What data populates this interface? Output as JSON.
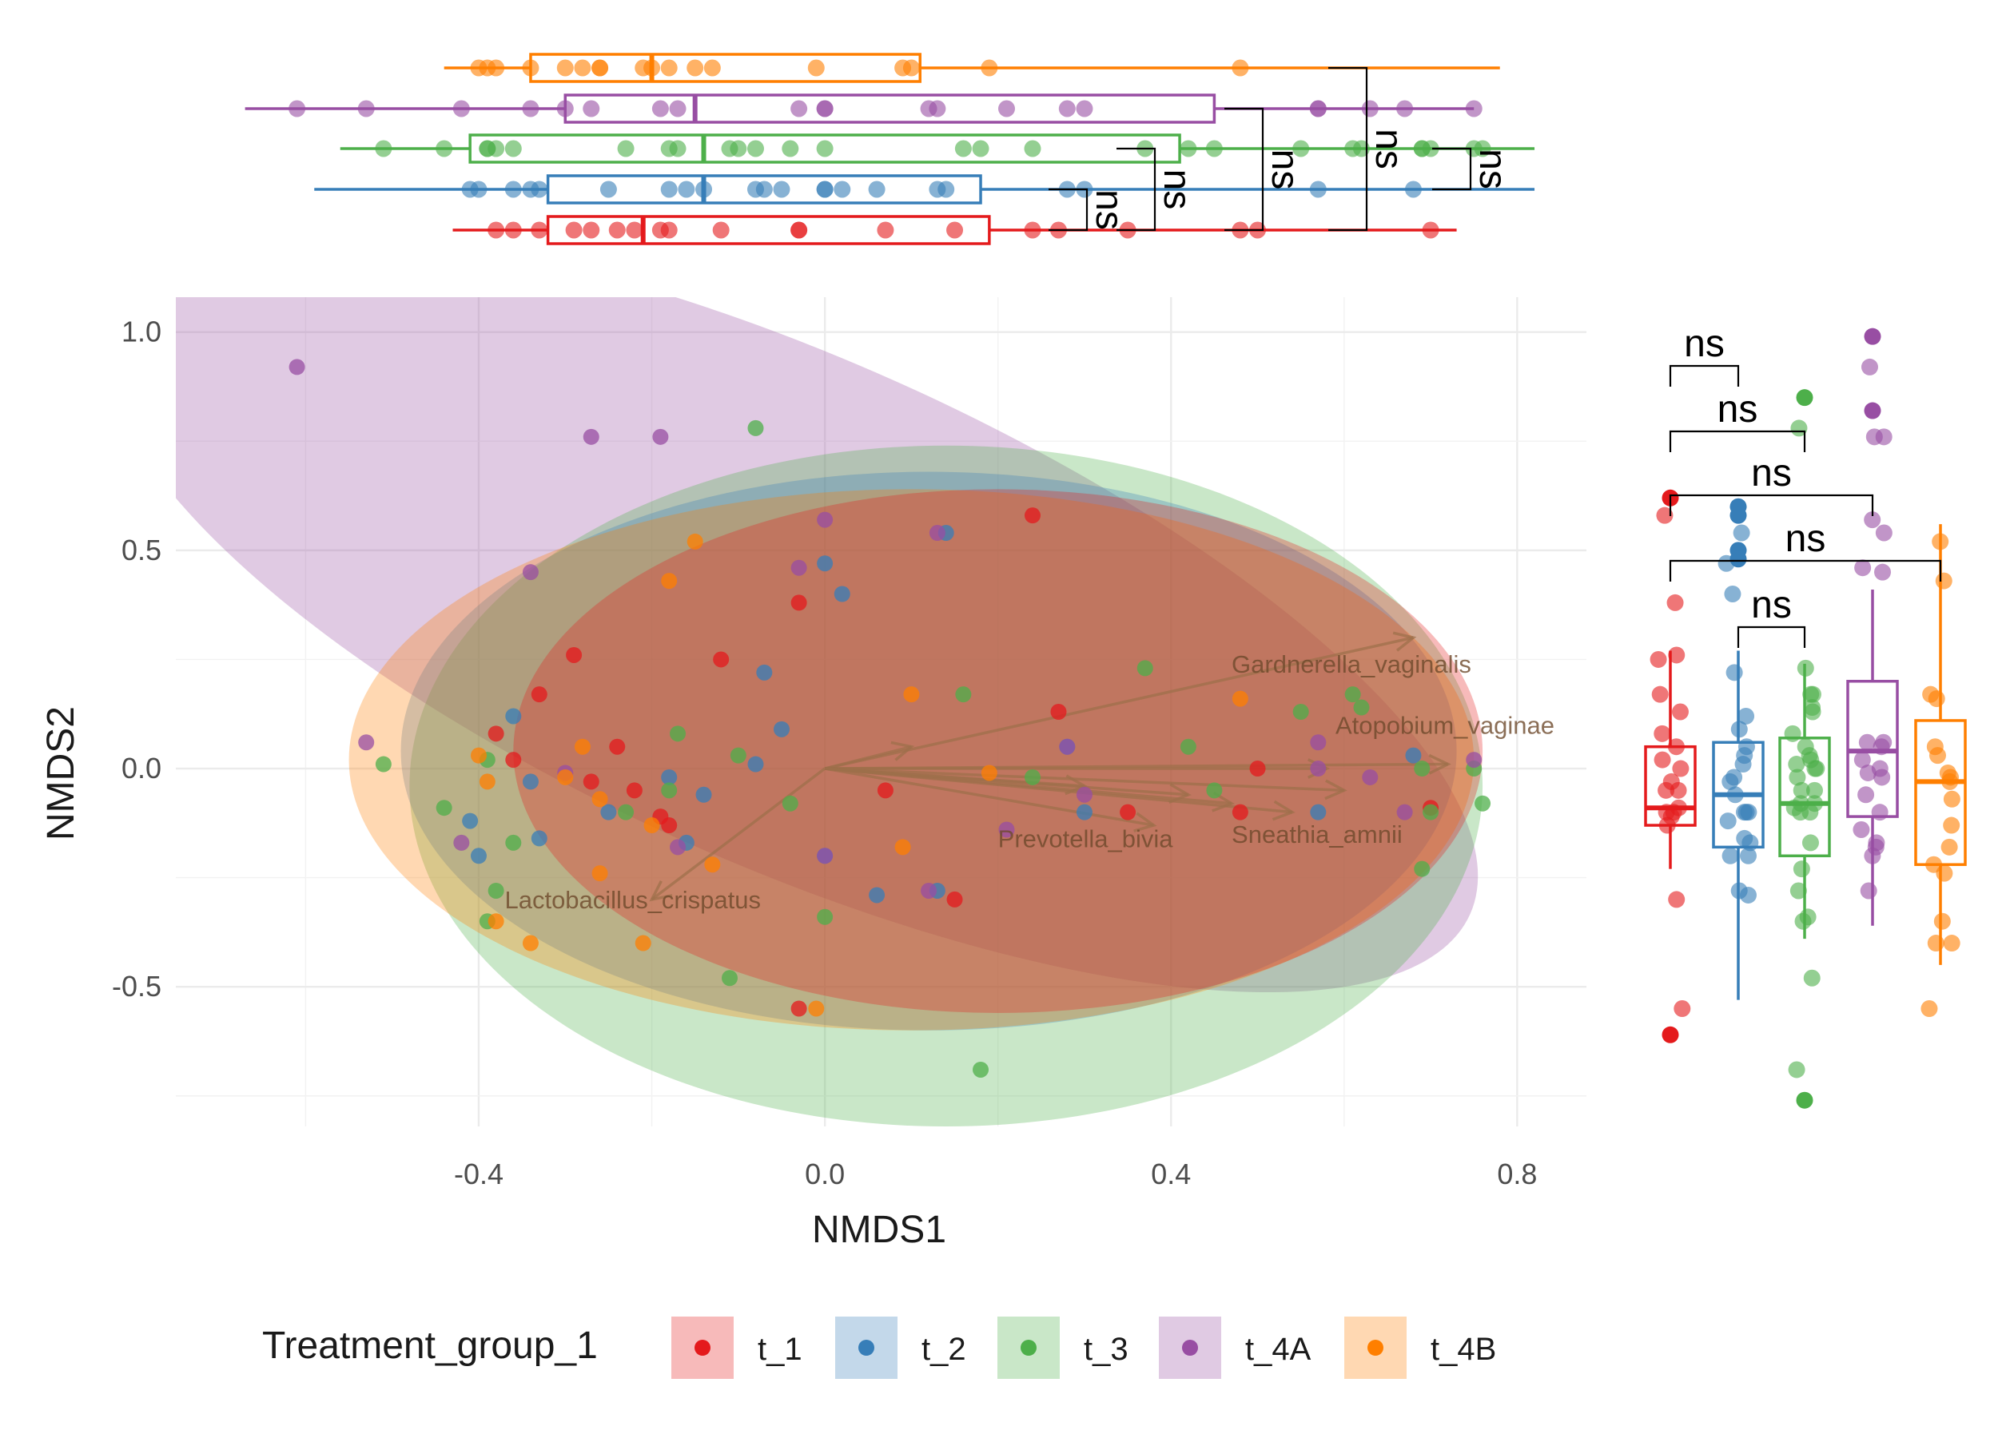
{
  "chart_data": {
    "type": "scatter",
    "subtype": "nmds-ordination-with-marginal-boxplots",
    "xlabel": "NMDS1",
    "ylabel": "NMDS2",
    "xlim": [
      -0.75,
      0.88
    ],
    "ylim": [
      -0.82,
      1.08
    ],
    "xticks": [
      -0.4,
      0.0,
      0.4,
      0.8
    ],
    "xtick_labels": [
      "-0.4",
      "0.0",
      "0.4",
      "0.8"
    ],
    "yticks": [
      -0.5,
      0.0,
      0.5,
      1.0
    ],
    "ytick_labels": [
      "-0.5",
      "0.0",
      "0.5",
      "1.0"
    ],
    "grid": true,
    "legend": {
      "title": "Treatment_group_1",
      "placement": "bottom",
      "entries": [
        "t_1",
        "t_2",
        "t_3",
        "t_4A",
        "t_4B"
      ]
    },
    "colors": {
      "t_1": "#E41A1C",
      "t_2": "#377EB8",
      "t_3": "#4DAF4A",
      "t_4A": "#984EA3",
      "t_4B": "#FF7F00"
    },
    "ellipses": [
      {
        "group": "t_4A",
        "cx": -0.04,
        "cy": 0.36,
        "rx": 0.86,
        "ry": 0.58,
        "angle_deg": -24
      },
      {
        "group": "t_3",
        "cx": 0.14,
        "cy": -0.04,
        "rx": 0.62,
        "ry": 0.78,
        "angle_deg": 0
      },
      {
        "group": "t_2",
        "cx": 0.12,
        "cy": 0.04,
        "rx": 0.61,
        "ry": 0.64,
        "angle_deg": 0
      },
      {
        "group": "t_4B",
        "cx": 0.1,
        "cy": 0.02,
        "rx": 0.65,
        "ry": 0.62,
        "angle_deg": 0
      },
      {
        "group": "t_1",
        "cx": 0.2,
        "cy": 0.04,
        "rx": 0.56,
        "ry": 0.6,
        "angle_deg": 0
      }
    ],
    "vectors": [
      {
        "label": "Gardnerella_vaginalis",
        "x": 0.68,
        "y": 0.3
      },
      {
        "label": "Atopobium_vaginae",
        "x": 0.72,
        "y": 0.01
      },
      {
        "label": "Prevotella_bivia",
        "x": 0.38,
        "y": -0.13
      },
      {
        "label": "Sneathia_amnii",
        "x": 0.54,
        "y": -0.1
      },
      {
        "label": "Lactobacillus_crispatus",
        "x": -0.2,
        "y": -0.3
      },
      {
        "label": "",
        "x": 0.1,
        "y": 0.05
      },
      {
        "label": "",
        "x": 0.58,
        "y": 0.0
      },
      {
        "label": "",
        "x": 0.3,
        "y": -0.04
      },
      {
        "label": "",
        "x": 0.47,
        "y": -0.08
      },
      {
        "label": "",
        "x": 0.6,
        "y": -0.05
      },
      {
        "label": "",
        "x": 0.42,
        "y": -0.06
      }
    ],
    "vector_label_positions": [
      {
        "label": "Gardnerella_vaginalis",
        "x": 0.47,
        "y": 0.22
      },
      {
        "label": "Atopobium_vaginae",
        "x": 0.59,
        "y": 0.08
      },
      {
        "label": "Prevotella_bivia",
        "x": 0.2,
        "y": -0.18
      },
      {
        "label": "Sneathia_amnii",
        "x": 0.47,
        "y": -0.17
      },
      {
        "label": "Lactobacillus_crispatus",
        "x": -0.37,
        "y": -0.32
      }
    ],
    "series": [
      {
        "name": "t_1",
        "points": [
          [
            -0.38,
            0.08
          ],
          [
            -0.33,
            0.17
          ],
          [
            -0.29,
            0.26
          ],
          [
            -0.24,
            0.05
          ],
          [
            -0.22,
            -0.05
          ],
          [
            -0.18,
            -0.13
          ],
          [
            -0.12,
            0.25
          ],
          [
            -0.03,
            0.38
          ],
          [
            0.24,
            0.58
          ],
          [
            0.35,
            -0.1
          ],
          [
            0.48,
            -0.1
          ],
          [
            0.7,
            -0.09
          ],
          [
            -0.36,
            0.02
          ],
          [
            -0.27,
            -0.03
          ],
          [
            -0.19,
            -0.11
          ],
          [
            0.27,
            0.13
          ],
          [
            0.07,
            -0.05
          ],
          [
            0.15,
            -0.3
          ],
          [
            -0.03,
            -0.55
          ],
          [
            0.5,
            0.0
          ]
        ]
      },
      {
        "name": "t_2",
        "points": [
          [
            -0.34,
            -0.03
          ],
          [
            -0.41,
            -0.12
          ],
          [
            -0.33,
            -0.16
          ],
          [
            -0.25,
            -0.1
          ],
          [
            -0.18,
            -0.02
          ],
          [
            -0.14,
            -0.06
          ],
          [
            -0.0,
            0.47
          ],
          [
            -0.08,
            0.01
          ],
          [
            0.02,
            0.4
          ],
          [
            -0.07,
            0.22
          ],
          [
            0.14,
            0.54
          ],
          [
            0.28,
            0.05
          ],
          [
            0.0,
            -0.2
          ],
          [
            -0.05,
            0.09
          ],
          [
            0.13,
            -0.28
          ],
          [
            0.06,
            -0.29
          ],
          [
            0.57,
            -0.1
          ],
          [
            0.68,
            0.03
          ],
          [
            -0.16,
            -0.17
          ],
          [
            0.3,
            -0.1
          ],
          [
            -0.4,
            -0.2
          ],
          [
            -0.36,
            0.12
          ]
        ]
      },
      {
        "name": "t_3",
        "points": [
          [
            -0.51,
            0.01
          ],
          [
            -0.44,
            -0.09
          ],
          [
            -0.39,
            0.02
          ],
          [
            -0.36,
            -0.17
          ],
          [
            -0.23,
            -0.1
          ],
          [
            -0.18,
            -0.05
          ],
          [
            -0.17,
            0.08
          ],
          [
            -0.1,
            0.03
          ],
          [
            -0.08,
            0.78
          ],
          [
            -0.04,
            -0.08
          ],
          [
            0.0,
            -0.34
          ],
          [
            0.16,
            0.17
          ],
          [
            0.18,
            -0.69
          ],
          [
            0.37,
            0.23
          ],
          [
            0.42,
            0.05
          ],
          [
            0.45,
            -0.05
          ],
          [
            0.55,
            0.13
          ],
          [
            0.61,
            0.17
          ],
          [
            0.69,
            0.0
          ],
          [
            0.75,
            0.0
          ],
          [
            0.76,
            -0.08
          ],
          [
            0.62,
            0.14
          ],
          [
            -0.38,
            -0.28
          ],
          [
            -0.39,
            -0.35
          ],
          [
            -0.11,
            -0.48
          ],
          [
            0.24,
            -0.02
          ],
          [
            0.7,
            -0.1
          ],
          [
            0.69,
            -0.23
          ]
        ]
      },
      {
        "name": "t_4A",
        "points": [
          [
            -0.61,
            0.92
          ],
          [
            -0.27,
            0.76
          ],
          [
            -0.19,
            0.76
          ],
          [
            -0.34,
            0.45
          ],
          [
            -0.53,
            0.06
          ],
          [
            -0.42,
            -0.17
          ],
          [
            -0.3,
            -0.01
          ],
          [
            -0.17,
            -0.18
          ],
          [
            0.0,
            0.57
          ],
          [
            0.13,
            0.54
          ],
          [
            -0.03,
            0.46
          ],
          [
            0.28,
            0.05
          ],
          [
            0.12,
            -0.28
          ],
          [
            0.21,
            -0.14
          ],
          [
            0.3,
            -0.06
          ],
          [
            0.57,
            0.0
          ],
          [
            0.63,
            -0.02
          ],
          [
            0.57,
            0.06
          ],
          [
            0.67,
            -0.1
          ],
          [
            0.75,
            0.02
          ],
          [
            -0.0,
            -0.2
          ]
        ]
      },
      {
        "name": "t_4B",
        "points": [
          [
            -0.4,
            0.03
          ],
          [
            -0.38,
            -0.35
          ],
          [
            -0.34,
            -0.4
          ],
          [
            -0.3,
            -0.02
          ],
          [
            -0.28,
            0.05
          ],
          [
            -0.26,
            -0.24
          ],
          [
            -0.21,
            -0.4
          ],
          [
            -0.18,
            0.43
          ],
          [
            -0.15,
            0.52
          ],
          [
            -0.26,
            -0.07
          ],
          [
            0.1,
            0.17
          ],
          [
            0.09,
            -0.18
          ],
          [
            0.48,
            0.16
          ],
          [
            -0.01,
            -0.55
          ],
          [
            -0.13,
            -0.22
          ],
          [
            0.19,
            -0.01
          ],
          [
            -0.39,
            -0.03
          ],
          [
            -0.2,
            -0.13
          ]
        ]
      }
    ],
    "marginal_x_boxplots": [
      {
        "group": "t_1",
        "q1": -0.32,
        "median": -0.21,
        "q3": 0.19,
        "whisker_low": -0.43,
        "whisker_high": 0.73
      },
      {
        "group": "t_2",
        "q1": -0.32,
        "median": -0.14,
        "q3": 0.18,
        "whisker_low": -0.59,
        "whisker_high": 0.82
      },
      {
        "group": "t_3",
        "q1": -0.41,
        "median": -0.14,
        "q3": 0.41,
        "whisker_low": -0.56,
        "whisker_high": 0.82
      },
      {
        "group": "t_4A",
        "q1": -0.3,
        "median": -0.15,
        "q3": 0.45,
        "whisker_low": -0.67,
        "whisker_high": 0.75
      },
      {
        "group": "t_4B",
        "q1": -0.34,
        "median": -0.2,
        "q3": 0.11,
        "whisker_low": -0.44,
        "whisker_high": 0.78
      }
    ],
    "marginal_y_boxplots": [
      {
        "group": "t_1",
        "q1": -0.13,
        "median": -0.09,
        "q3": 0.05,
        "whisker_low": -0.23,
        "whisker_high": 0.27,
        "outliers": [
          0.62,
          -0.61
        ]
      },
      {
        "group": "t_2",
        "q1": -0.18,
        "median": -0.06,
        "q3": 0.06,
        "whisker_low": -0.53,
        "whisker_high": 0.27,
        "outliers": [
          0.6,
          0.58,
          0.5,
          0.48
        ]
      },
      {
        "group": "t_3",
        "q1": -0.2,
        "median": -0.08,
        "q3": 0.07,
        "whisker_low": -0.39,
        "whisker_high": 0.24,
        "outliers": [
          0.85,
          -0.76
        ]
      },
      {
        "group": "t_4A",
        "q1": -0.11,
        "median": 0.04,
        "q3": 0.2,
        "whisker_low": -0.36,
        "whisker_high": 0.41,
        "outliers": [
          0.99,
          0.82
        ]
      },
      {
        "group": "t_4B",
        "q1": -0.22,
        "median": -0.03,
        "q3": 0.11,
        "whisker_low": -0.45,
        "whisker_high": 0.56,
        "outliers": []
      }
    ],
    "y_comparisons": [
      {
        "from": "t_1",
        "to": "t_2",
        "label": "ns",
        "level": 0.92
      },
      {
        "from": "t_1",
        "to": "t_3",
        "label": "ns",
        "level": 0.77
      },
      {
        "from": "t_1",
        "to": "t_4A",
        "label": "ns",
        "level": 0.62
      },
      {
        "from": "t_1",
        "to": "t_4B",
        "label": "ns",
        "level": 0.47
      },
      {
        "from": "t_2",
        "to": "t_3",
        "label": "ns",
        "level": 0.32
      }
    ],
    "x_comparisons": [
      {
        "from": "t_1",
        "to": "t_2",
        "label": "ns",
        "level": 0.25
      },
      {
        "from": "t_1",
        "to": "t_3",
        "label": "ns",
        "level": 0.4
      },
      {
        "from": "t_1",
        "to": "t_4A",
        "label": "ns",
        "level": 0.53
      },
      {
        "from": "t_1",
        "to": "t_4B",
        "label": "ns",
        "level": 0.64
      },
      {
        "from": "t_2",
        "to": "t_3",
        "label": "ns",
        "level": 0.73
      }
    ]
  }
}
